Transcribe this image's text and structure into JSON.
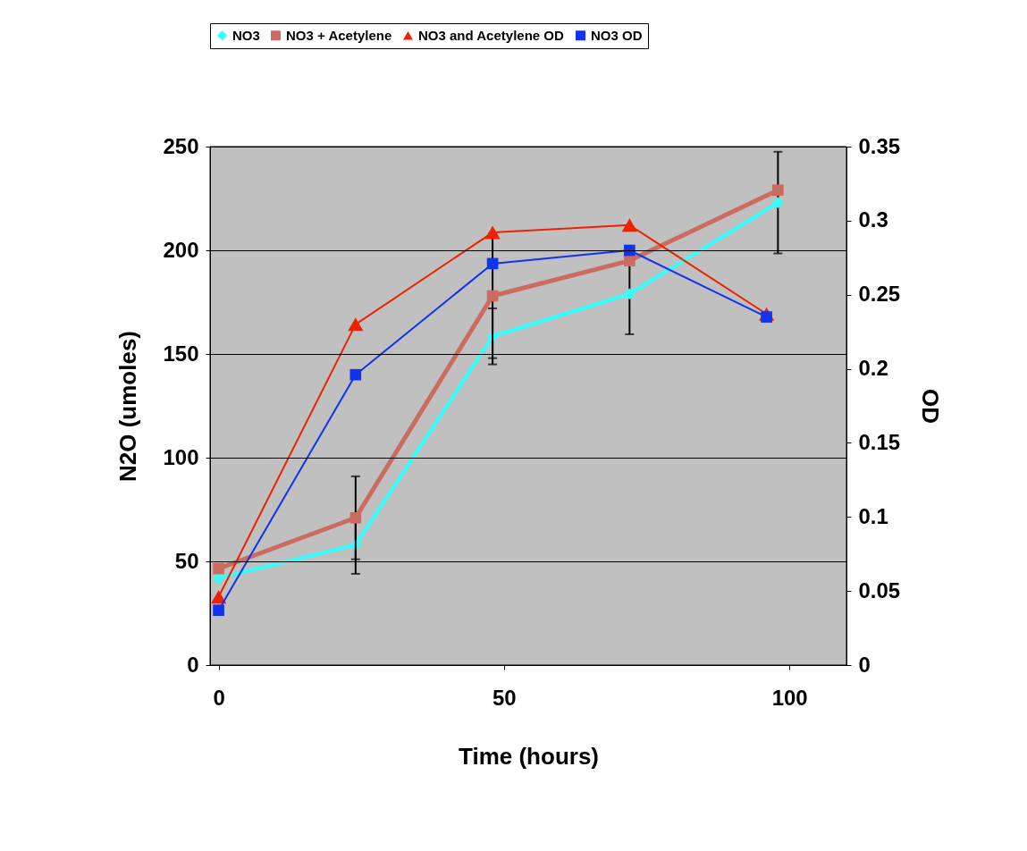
{
  "chart_data": {
    "type": "line",
    "xlabel": "Time (hours)",
    "ylabel": "N2O (umoles)",
    "y2label": "OD",
    "xlim": [
      -1.5,
      110
    ],
    "xticks": [
      0,
      50,
      100
    ],
    "ylim": [
      0,
      250
    ],
    "yticks": [
      0,
      50,
      100,
      150,
      200,
      250
    ],
    "y2lim": [
      0,
      0.35
    ],
    "y2ticks": [
      0,
      0.05,
      0.1,
      0.15,
      0.2,
      0.25,
      0.3,
      0.35
    ],
    "grid": "y",
    "legend": "top",
    "series": [
      {
        "name": "NO3",
        "color": "#33ffff",
        "marker": "diamond",
        "x": [
          0,
          24,
          48,
          72,
          98
        ],
        "values": [
          42,
          58,
          158.5,
          179,
          223
        ],
        "errors": [
          null,
          14,
          13.5,
          19.5,
          24.5
        ]
      },
      {
        "name": "NO3 + Acetylene",
        "color": "#cc6b60",
        "marker": "square",
        "x": [
          0,
          24,
          48,
          72,
          98
        ],
        "values": [
          46.5,
          71,
          178,
          195,
          229
        ],
        "errors": [
          null,
          20,
          30,
          null,
          null
        ]
      },
      {
        "name": "NO3 and Acetylene OD",
        "color": "#ee2200",
        "marker": "triangle",
        "axis": "y2",
        "x": [
          0,
          24,
          48,
          72,
          96
        ],
        "values": [
          0.046,
          0.23,
          0.292,
          0.297,
          0.237
        ]
      },
      {
        "name": "NO3 OD",
        "color": "#1133ee",
        "marker": "square",
        "axis": "y2",
        "x": [
          0,
          24,
          48,
          72,
          96
        ],
        "values": [
          0.037,
          0.196,
          0.271,
          0.28,
          0.235
        ]
      }
    ]
  }
}
